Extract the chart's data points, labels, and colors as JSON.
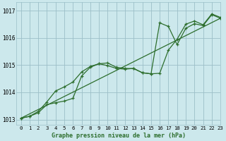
{
  "title": "Graphe pression niveau de la mer (hPa)",
  "bg_color": "#cce8ec",
  "grid_color": "#9bbfc8",
  "line_color": "#2d6e2d",
  "xlim": [
    -0.5,
    23
  ],
  "ylim": [
    1012.8,
    1017.3
  ],
  "yticks": [
    1013,
    1014,
    1015,
    1016,
    1017
  ],
  "xtick_labels": [
    "0",
    "1",
    "2",
    "3",
    "4",
    "5",
    "6",
    "7",
    "8",
    "9",
    "10",
    "11",
    "12",
    "13",
    "14",
    "15",
    "16",
    "17",
    "18",
    "19",
    "20",
    "21",
    "22",
    "23"
  ],
  "series1_x": [
    0,
    1,
    2,
    3,
    4,
    5,
    6,
    7,
    8,
    9,
    10,
    11,
    12,
    13,
    14,
    15,
    16,
    17,
    18,
    19,
    20,
    21,
    22,
    23
  ],
  "series1_y": [
    1013.05,
    1013.12,
    1013.3,
    1013.65,
    1014.05,
    1014.2,
    1014.38,
    1014.75,
    1014.95,
    1015.05,
    1015.08,
    1014.92,
    1014.88,
    1014.87,
    1014.72,
    1014.68,
    1014.7,
    1015.55,
    1015.95,
    1016.5,
    1016.62,
    1016.48,
    1016.88,
    1016.75
  ],
  "series2_x": [
    0,
    1,
    2,
    3,
    4,
    5,
    6,
    7,
    8,
    9,
    10,
    11,
    12,
    13,
    14,
    15,
    16,
    17,
    18,
    19,
    20,
    21,
    22,
    23
  ],
  "series2_y": [
    1013.05,
    1013.12,
    1013.25,
    1013.55,
    1013.62,
    1013.68,
    1013.78,
    1014.6,
    1014.92,
    1015.05,
    1014.98,
    1014.88,
    1014.85,
    1014.88,
    1014.72,
    1014.68,
    1016.55,
    1016.42,
    1015.75,
    1016.35,
    1016.52,
    1016.45,
    1016.85,
    1016.72
  ],
  "series3_x": [
    0,
    23
  ],
  "series3_y": [
    1013.05,
    1016.72
  ]
}
